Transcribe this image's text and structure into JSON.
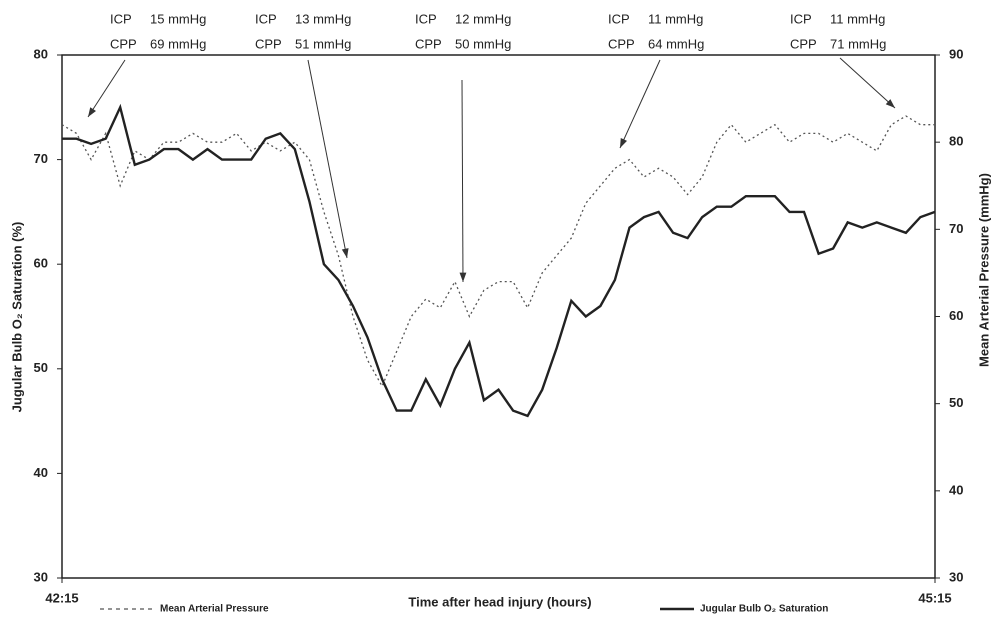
{
  "chart_data": {
    "type": "line",
    "xlabel": "Time after head injury (hours)",
    "ylabel": "Jugular Bulb O₂ Saturation (%)",
    "y2label": "Mean Arterial Pressure (mmHg)",
    "xlim": [
      0,
      180
    ],
    "xticks": [
      {
        "value": 0,
        "label": "42:15"
      },
      {
        "value": 180,
        "label": "45:15"
      }
    ],
    "ylim": [
      30,
      80
    ],
    "yticks": [
      30,
      40,
      50,
      60,
      70,
      80
    ],
    "y2lim": [
      30,
      90
    ],
    "y2ticks": [
      30,
      40,
      50,
      60,
      70,
      80,
      90
    ],
    "x": [
      0,
      3,
      6,
      9,
      12,
      15,
      18,
      21,
      24,
      27,
      30,
      33,
      36,
      39,
      42,
      45,
      48,
      51,
      54,
      57,
      60,
      63,
      66,
      69,
      72,
      75,
      78,
      81,
      84,
      87,
      90,
      93,
      96,
      99,
      102,
      105,
      108,
      111,
      114,
      117,
      120,
      123,
      126,
      129,
      132,
      135,
      138,
      141,
      144,
      147,
      150,
      153,
      156,
      159,
      162,
      165,
      168,
      171,
      174,
      177,
      180
    ],
    "series": [
      {
        "name": "Mean Arterial Pressure",
        "color": "#555555",
        "style": "dotted",
        "axis": "y2",
        "values": [
          82,
          81,
          78,
          81,
          75,
          79,
          78,
          80,
          80,
          81,
          80,
          80,
          81,
          79,
          80,
          79,
          80,
          78,
          72,
          67,
          60,
          55,
          52,
          56,
          60,
          62,
          61,
          64,
          60,
          63,
          64,
          64,
          61,
          65,
          67,
          69,
          73,
          75,
          77,
          78,
          76,
          77,
          76,
          74,
          76,
          80,
          82,
          80,
          81,
          82,
          80,
          81,
          81,
          80,
          81,
          80,
          79,
          82,
          83,
          82,
          82
        ]
      },
      {
        "name": "Jugular Bulb O₂ Saturation",
        "color": "#222222",
        "style": "solid",
        "axis": "y",
        "values": [
          72,
          72,
          71.5,
          72,
          75,
          69.5,
          70,
          71,
          71,
          70,
          71,
          70,
          70,
          70,
          72,
          72.5,
          71,
          66,
          60,
          58.5,
          56,
          53,
          49,
          46,
          46,
          49,
          46.5,
          50,
          52.5,
          47,
          48,
          46,
          45.5,
          48,
          52,
          56.5,
          55,
          56,
          58.5,
          63.5,
          64.5,
          65,
          63,
          62.5,
          64.5,
          65.5,
          65.5,
          66.5,
          66.5,
          66.5,
          65,
          65,
          61,
          61.5,
          64,
          63.5,
          64,
          63.5,
          63,
          64.5,
          65
        ]
      }
    ],
    "annotations": [
      {
        "lines": [
          [
            "ICP",
            "15 mmHg"
          ],
          [
            "CPP",
            "69 mmHg"
          ]
        ]
      },
      {
        "lines": [
          [
            "ICP",
            "13 mmHg"
          ],
          [
            "CPP",
            "51 mmHg"
          ]
        ]
      },
      {
        "lines": [
          [
            "ICP",
            "12 mmHg"
          ],
          [
            "CPP",
            "50 mmHg"
          ]
        ]
      },
      {
        "lines": [
          [
            "ICP",
            "11 mmHg"
          ],
          [
            "CPP",
            "64 mmHg"
          ]
        ]
      },
      {
        "lines": [
          [
            "ICP",
            "11 mmHg"
          ],
          [
            "CPP",
            "71 mmHg"
          ]
        ]
      }
    ]
  }
}
